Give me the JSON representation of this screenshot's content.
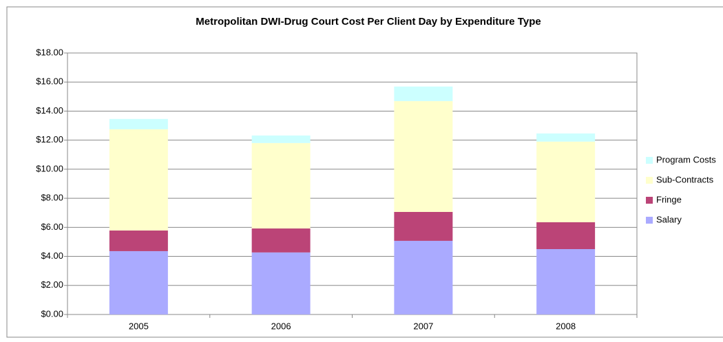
{
  "chart_data": {
    "type": "stacked-bar",
    "title": "Metropolitan DWI-Drug Court Cost Per Client Day by Expenditure Type",
    "categories": [
      "2005",
      "2006",
      "2007",
      "2008"
    ],
    "series": [
      {
        "name": "Salary",
        "color": "#aaaaff",
        "values": [
          4.36,
          4.27,
          5.07,
          4.5
        ]
      },
      {
        "name": "Fringe",
        "color": "#bb4477",
        "values": [
          1.42,
          1.65,
          1.99,
          1.85
        ]
      },
      {
        "name": "Sub-Contracts",
        "color": "#ffffcc",
        "values": [
          6.97,
          5.88,
          7.63,
          5.55
        ]
      },
      {
        "name": "Program Costs",
        "color": "#ccffff",
        "values": [
          0.71,
          0.52,
          1.0,
          0.56
        ]
      }
    ],
    "ylim": [
      0,
      18
    ],
    "yticks": [
      {
        "value": 0,
        "label": "$0.00"
      },
      {
        "value": 2,
        "label": "$2.00"
      },
      {
        "value": 4,
        "label": "$4.00"
      },
      {
        "value": 6,
        "label": "$6.00"
      },
      {
        "value": 8,
        "label": "$8.00"
      },
      {
        "value": 10,
        "label": "$10.00"
      },
      {
        "value": 12,
        "label": "$12.00"
      },
      {
        "value": 14,
        "label": "$14.00"
      },
      {
        "value": 16,
        "label": "$16.00"
      },
      {
        "value": 18,
        "label": "$18.00"
      }
    ],
    "grid": true,
    "legend": "right"
  }
}
